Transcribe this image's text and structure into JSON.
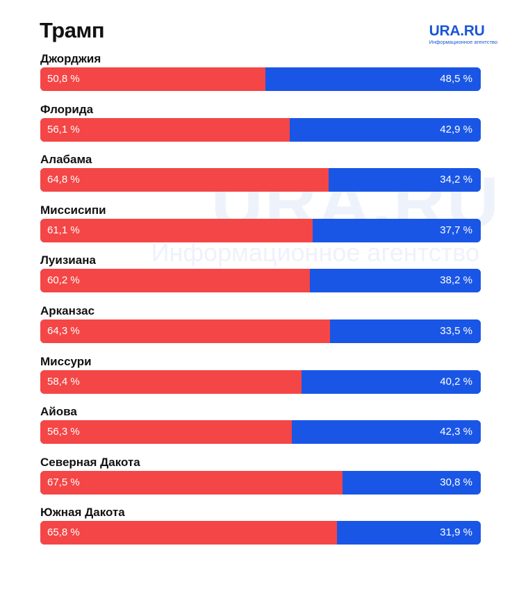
{
  "header": {
    "title": "Трамп",
    "logo_name": "URA.RU",
    "logo_sub": "Информационное агентство"
  },
  "watermark": {
    "big": "URA.RU",
    "small": "Информационное агентство"
  },
  "colors": {
    "trump": "#f44646",
    "harris": "#1a56e6",
    "brand": "#1a56d6"
  },
  "chart_data": {
    "type": "bar",
    "orientation": "horizontal",
    "stacked": true,
    "title": "Трамп",
    "categories": [
      "Джорджия",
      "Флорида",
      "Алабама",
      "Миссисипи",
      "Луизиана",
      "Арканзас",
      "Миссури",
      "Айова",
      "Северная Дакота",
      "Южная Дакота"
    ],
    "series": [
      {
        "color": "#f44646",
        "values": [
          50.8,
          56.1,
          64.8,
          61.1,
          60.2,
          64.3,
          58.4,
          56.3,
          67.5,
          65.8
        ],
        "labels": [
          "50,8 %",
          "56,1 %",
          "64,8 %",
          "61,1 %",
          "60,2 %",
          "64,3 %",
          "58,4 %",
          "56,3 %",
          "67,5 %",
          "65,8 %"
        ]
      },
      {
        "color": "#1a56e6",
        "values": [
          48.5,
          42.9,
          34.2,
          37.7,
          38.2,
          33.5,
          40.2,
          42.3,
          30.8,
          31.9
        ],
        "labels": [
          "48,5 %",
          "42,9 %",
          "34,2 %",
          "37,7 %",
          "38,2 %",
          "33,5 %",
          "40,2 %",
          "42,3 %",
          "30,8 %",
          "31,9 %"
        ]
      }
    ],
    "xlim": [
      0,
      100
    ],
    "grid": false,
    "legend": false
  }
}
